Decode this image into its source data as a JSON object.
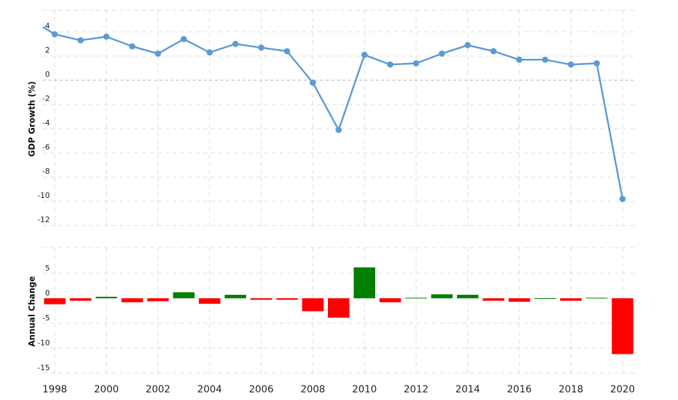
{
  "chart_data": [
    {
      "type": "line",
      "ylabel": "GDP Growth (%)",
      "ylim": [
        -12,
        4
      ],
      "yticks": [
        4,
        2,
        0,
        -2,
        -4,
        -6,
        -8,
        -10,
        -12
      ],
      "grid": true,
      "x": [
        1998,
        1999,
        2000,
        2001,
        2002,
        2003,
        2004,
        2005,
        2006,
        2007,
        2008,
        2009,
        2010,
        2011,
        2012,
        2013,
        2014,
        2015,
        2016,
        2017,
        2018,
        2019,
        2020
      ],
      "series": [
        {
          "values": [
            3.8,
            3.3,
            3.6,
            2.8,
            2.2,
            3.4,
            2.3,
            3.0,
            2.7,
            2.4,
            -0.2,
            -4.1,
            2.1,
            1.3,
            1.4,
            2.2,
            2.9,
            2.4,
            1.7,
            1.7,
            1.3,
            1.4,
            -9.8
          ],
          "color": "#5b9bd5"
        }
      ]
    },
    {
      "type": "bar",
      "ylabel": "Annual Change",
      "ylim": [
        -15,
        5
      ],
      "yticks": [
        5,
        0,
        -5,
        -10,
        -15
      ],
      "grid": true,
      "x": [
        1998,
        1999,
        2000,
        2001,
        2002,
        2003,
        2004,
        2005,
        2006,
        2007,
        2008,
        2009,
        2010,
        2011,
        2012,
        2013,
        2014,
        2015,
        2016,
        2017,
        2018,
        2019,
        2020
      ],
      "values": [
        -1.2,
        -0.5,
        0.3,
        -0.8,
        -0.6,
        1.2,
        -1.1,
        0.7,
        -0.3,
        -0.3,
        -2.6,
        -3.9,
        6.2,
        -0.8,
        0.1,
        0.8,
        0.7,
        -0.5,
        -0.7,
        0.0,
        -0.5,
        0.1,
        -11.2
      ],
      "positive_color": "#008000",
      "negative_color": "#ff0000"
    }
  ],
  "x_axis": {
    "ticks": [
      1998,
      2000,
      2002,
      2004,
      2006,
      2008,
      2010,
      2012,
      2014,
      2016,
      2018,
      2020
    ]
  }
}
